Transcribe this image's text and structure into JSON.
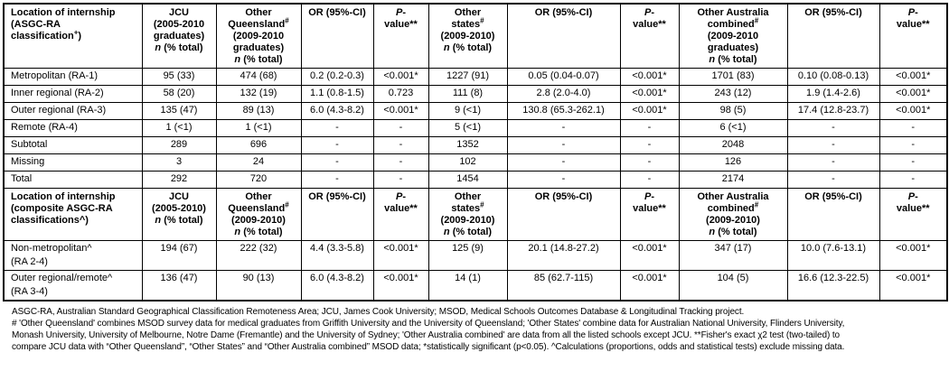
{
  "table": {
    "sections": [
      {
        "headers": [
          [
            "Location of internship",
            {
              "br": true
            },
            "(ASGC-RA",
            {
              "br": true
            },
            "classification",
            {
              "sup": "+"
            },
            ")"
          ],
          [
            "JCU",
            {
              "br": true
            },
            "(2005-2010",
            {
              "br": true
            },
            "graduates)",
            {
              "br": true
            },
            {
              "i": "n"
            },
            " (% total)"
          ],
          [
            "Other",
            {
              "br": true
            },
            "Queensland",
            {
              "sup": "#"
            },
            {
              "br": true
            },
            "(2009-2010",
            {
              "br": true
            },
            "graduates)",
            {
              "br": true
            },
            {
              "i": "n"
            },
            " (% total)"
          ],
          [
            "OR (95%-CI)"
          ],
          [
            {
              "i": "P"
            },
            "-",
            {
              "br": true
            },
            "value**"
          ],
          [
            "Other",
            {
              "br": true
            },
            "states",
            {
              "sup": "#"
            },
            {
              "br": true
            },
            "(2009-2010)",
            {
              "br": true
            },
            {
              "i": "n"
            },
            " (% total)"
          ],
          [
            "OR (95%-CI)"
          ],
          [
            {
              "i": "P"
            },
            "-",
            {
              "br": true
            },
            "value**"
          ],
          [
            "Other Australia",
            {
              "br": true
            },
            "combined",
            {
              "sup": "#"
            },
            {
              "br": true
            },
            "(2009-2010",
            {
              "br": true
            },
            "graduates)",
            {
              "br": true
            },
            {
              "i": "n"
            },
            " (% total)"
          ],
          [
            "OR (95%-CI)"
          ],
          [
            {
              "i": "P"
            },
            "-",
            {
              "br": true
            },
            "value**"
          ]
        ],
        "rows": [
          {
            "label": "Metropolitan (RA-1)",
            "cells": [
              "95 (33)",
              "474 (68)",
              "0.2 (0.2-0.3)",
              "<0.001*",
              "1227 (91)",
              "0.05 (0.04-0.07)",
              "<0.001*",
              "1701 (83)",
              "0.10 (0.08-0.13)",
              "<0.001*"
            ]
          },
          {
            "label": "Inner regional (RA-2)",
            "cells": [
              "58 (20)",
              "132 (19)",
              "1.1 (0.8-1.5)",
              "0.723",
              "111 (8)",
              "2.8 (2.0-4.0)",
              "<0.001*",
              "243 (12)",
              "1.9 (1.4-2.6)",
              "<0.001*"
            ]
          },
          {
            "label": "Outer regional (RA-3)",
            "cells": [
              "135 (47)",
              "89 (13)",
              "6.0 (4.3-8.2)",
              "<0.001*",
              "9 (<1)",
              "130.8 (65.3-262.1)",
              "<0.001*",
              "98 (5)",
              "17.4 (12.8-23.7)",
              "<0.001*"
            ]
          },
          {
            "label": "Remote (RA-4)",
            "cells": [
              "1 (<1)",
              "1 (<1)",
              "-",
              "-",
              "5 (<1)",
              "-",
              "-",
              "6 (<1)",
              "-",
              "-"
            ]
          },
          {
            "label": "Subtotal",
            "cells": [
              "289",
              "696",
              "-",
              "-",
              "1352",
              "-",
              "-",
              "2048",
              "-",
              "-"
            ]
          },
          {
            "label": "Missing",
            "cells": [
              "3",
              "24",
              "-",
              "-",
              "102",
              "-",
              "-",
              "126",
              "-",
              "-"
            ]
          },
          {
            "label": "Total",
            "cells": [
              "292",
              "720",
              "-",
              "-",
              "1454",
              "-",
              "-",
              "2174",
              "-",
              "-"
            ]
          }
        ]
      },
      {
        "headers": [
          [
            "Location of internship",
            {
              "br": true
            },
            "(composite ASGC-RA",
            {
              "br": true
            },
            "classifications^)"
          ],
          [
            "JCU",
            {
              "br": true
            },
            "(2005-2010)",
            {
              "br": true
            },
            {
              "i": "n"
            },
            " (% total)"
          ],
          [
            "Other",
            {
              "br": true
            },
            "Queensland",
            {
              "sup": "#"
            },
            {
              "br": true
            },
            "(2009-2010)",
            {
              "br": true
            },
            {
              "i": "n"
            },
            " (% total)"
          ],
          [
            "OR (95%-CI)"
          ],
          [
            {
              "i": "P"
            },
            "-",
            {
              "br": true
            },
            "value**"
          ],
          [
            "Other",
            {
              "br": true
            },
            "states",
            {
              "sup": "#"
            },
            {
              "br": true
            },
            "(2009-2010)",
            {
              "br": true
            },
            {
              "i": "n"
            },
            " (% total)"
          ],
          [
            "OR (95%-CI)"
          ],
          [
            {
              "i": "P"
            },
            "-",
            {
              "br": true
            },
            "value**"
          ],
          [
            "Other Australia",
            {
              "br": true
            },
            "combined",
            {
              "sup": "#"
            },
            {
              "br": true
            },
            "(2009-2010)",
            {
              "br": true
            },
            {
              "i": "n"
            },
            " (% total)"
          ],
          [
            "OR (95%-CI)"
          ],
          [
            {
              "i": "P"
            },
            "-",
            {
              "br": true
            },
            "value**"
          ]
        ],
        "rows": [
          {
            "label": "Non-metropolitan^\n(RA 2-4)",
            "tall": true,
            "cells": [
              "194 (67)",
              "222 (32)",
              "4.4 (3.3-5.8)",
              "<0.001*",
              "125 (9)",
              "20.1 (14.8-27.2)",
              "<0.001*",
              "347 (17)",
              "10.0 (7.6-13.1)",
              "<0.001*"
            ]
          },
          {
            "label": "Outer regional/remote^\n(RA 3-4)",
            "tall": true,
            "cells": [
              "136 (47)",
              "90 (13)",
              "6.0 (4.3-8.2)",
              "<0.001*",
              "14 (1)",
              "85 (62.7-115)",
              "<0.001*",
              "104 (5)",
              "16.6 (12.3-22.5)",
              "<0.001*"
            ]
          }
        ]
      }
    ]
  },
  "footnotes": {
    "line1": "ASGC-RA, Australian Standard Geographical Classification Remoteness Area; JCU, James Cook University; MSOD, Medical Schools Outcomes Database & Longitudinal Tracking project.",
    "line2": "# 'Other Queensland' combines MSOD survey data for medical graduates from Griffith University and the University of Queensland; 'Other States' combine data for Australian National University, Flinders University,",
    "line3": "Monash University, University of Melbourne, Notre Dame (Fremantle) and the University of Sydney; 'Other Australia combined' are data from all the listed schools except JCU. **Fisher's exact χ2 test (two-tailed) to",
    "line4": "compare JCU data with “Other Queensland”, “Other States” and “Other Australia combined” MSOD data; *statistically significant (p<0.05).  ^Calculations (proportions, odds and statistical tests) exclude missing data."
  }
}
